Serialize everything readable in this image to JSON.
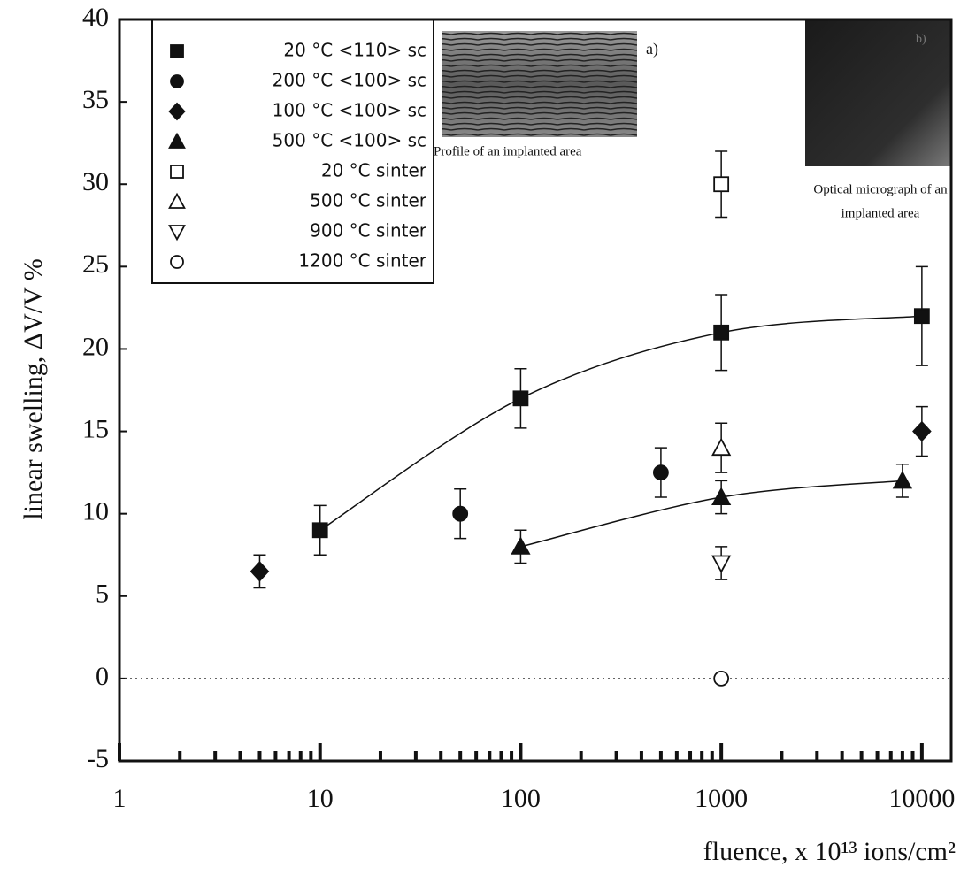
{
  "chart_data": {
    "type": "scatter",
    "xlabel": "fluence, x 10¹³ ions/cm²",
    "ylabel": "linear swelling,  ΔV/V  %",
    "xscale": "log",
    "xlim": [
      1,
      14000
    ],
    "xticks": [
      1,
      10,
      100,
      1000,
      10000
    ],
    "xminorticks": [
      2,
      3,
      4,
      5,
      6,
      7,
      8,
      9,
      20,
      30,
      40,
      50,
      60,
      70,
      80,
      90,
      200,
      300,
      400,
      500,
      600,
      700,
      800,
      900,
      2000,
      3000,
      4000,
      5000,
      6000,
      7000,
      8000,
      9000
    ],
    "ylim": [
      -5,
      40
    ],
    "yticks": [
      -5,
      0,
      5,
      10,
      15,
      20,
      25,
      30,
      35,
      40
    ],
    "zero_line": true,
    "legend": "upper left",
    "series": [
      {
        "name": "20 °C <110> sc",
        "color": "#111111",
        "marker": "square",
        "filled": true,
        "fit_curve": true,
        "x": [
          10,
          100,
          1000,
          10000
        ],
        "values": [
          9,
          17,
          21,
          22
        ],
        "errors": [
          1.5,
          1.8,
          2.3,
          3
        ]
      },
      {
        "name": "200 °C <100> sc",
        "color": "#111111",
        "marker": "circle",
        "filled": true,
        "x": [
          50,
          500
        ],
        "values": [
          10,
          12.5
        ],
        "errors": [
          1.5,
          1.5
        ]
      },
      {
        "name": "100 °C <100> sc",
        "color": "#111111",
        "marker": "diamond",
        "filled": true,
        "x": [
          5,
          10000
        ],
        "values": [
          6.5,
          15
        ],
        "errors": [
          1,
          1.5
        ]
      },
      {
        "name": "500 °C <100> sc",
        "color": "#111111",
        "marker": "triangle-up",
        "filled": true,
        "fit_curve": true,
        "x": [
          100,
          1000,
          8000
        ],
        "values": [
          8,
          11,
          12
        ],
        "errors": [
          1,
          1,
          1
        ]
      },
      {
        "name": "20 °C sinter",
        "color": "#111111",
        "marker": "square",
        "filled": false,
        "x": [
          1000
        ],
        "values": [
          30
        ],
        "errors": [
          2
        ]
      },
      {
        "name": "500 °C sinter",
        "color": "#111111",
        "marker": "triangle-up",
        "filled": false,
        "x": [
          1000
        ],
        "values": [
          14
        ],
        "errors": [
          1.5
        ]
      },
      {
        "name": "900 °C sinter",
        "color": "#111111",
        "marker": "triangle-down",
        "filled": false,
        "x": [
          1000
        ],
        "values": [
          7
        ],
        "errors": [
          1
        ]
      },
      {
        "name": "1200 °C sinter",
        "color": "#111111",
        "marker": "circle",
        "filled": false,
        "x": [
          1000
        ],
        "values": [
          0
        ]
      }
    ],
    "annotations": [
      "a)",
      "Profile of an implanted area",
      "b)",
      "Optical micrograph of an",
      "implanted area"
    ]
  }
}
